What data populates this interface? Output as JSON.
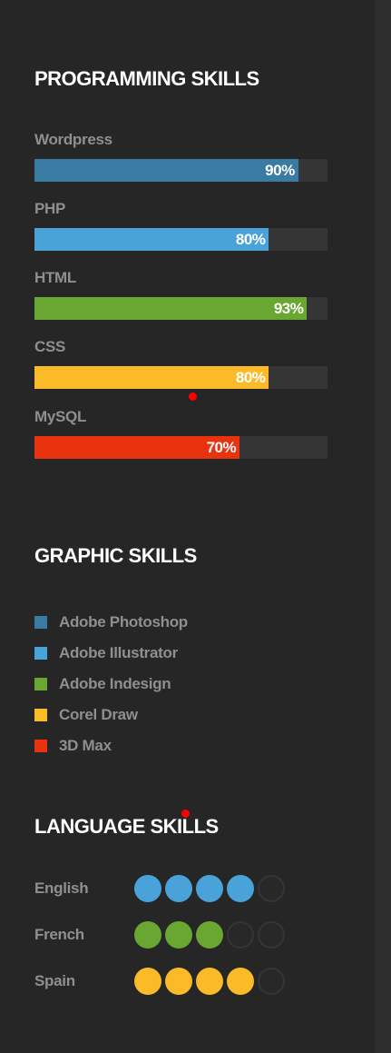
{
  "programming": {
    "title": "PROGRAMMING SKILLS",
    "skills": [
      {
        "label": "Wordpress",
        "percent": 90,
        "percent_text": "90%",
        "color": "#3a7ba3"
      },
      {
        "label": "PHP",
        "percent": 80,
        "percent_text": "80%",
        "color": "#4aa3d8"
      },
      {
        "label": "HTML",
        "percent": 93,
        "percent_text": "93%",
        "color": "#6aa632"
      },
      {
        "label": "CSS",
        "percent": 80,
        "percent_text": "80%",
        "color": "#fbbb28"
      },
      {
        "label": "MySQL",
        "percent": 70,
        "percent_text": "70%",
        "color": "#e8330e"
      }
    ]
  },
  "graphic": {
    "title": "GRAPHIC SKILLS",
    "items": [
      {
        "label": "Adobe Photoshop",
        "color": "#3a7ba3"
      },
      {
        "label": "Adobe Illustrator",
        "color": "#4aa3d8"
      },
      {
        "label": "Adobe Indesign",
        "color": "#6aa632"
      },
      {
        "label": "Corel Draw",
        "color": "#fbbb28"
      },
      {
        "label": "3D Max",
        "color": "#e8330e"
      }
    ]
  },
  "language": {
    "title": "LANGUAGE SKILLS",
    "max_level": 5,
    "items": [
      {
        "label": "English",
        "level": 4,
        "color": "#4aa3d8"
      },
      {
        "label": "French",
        "level": 3,
        "color": "#6aa632"
      },
      {
        "label": "Spain",
        "level": 4,
        "color": "#fbbb28"
      }
    ]
  },
  "theme": {
    "background": "#262626",
    "track": "#353535",
    "label": "#8f8f8f",
    "marker": "#ff0000"
  }
}
